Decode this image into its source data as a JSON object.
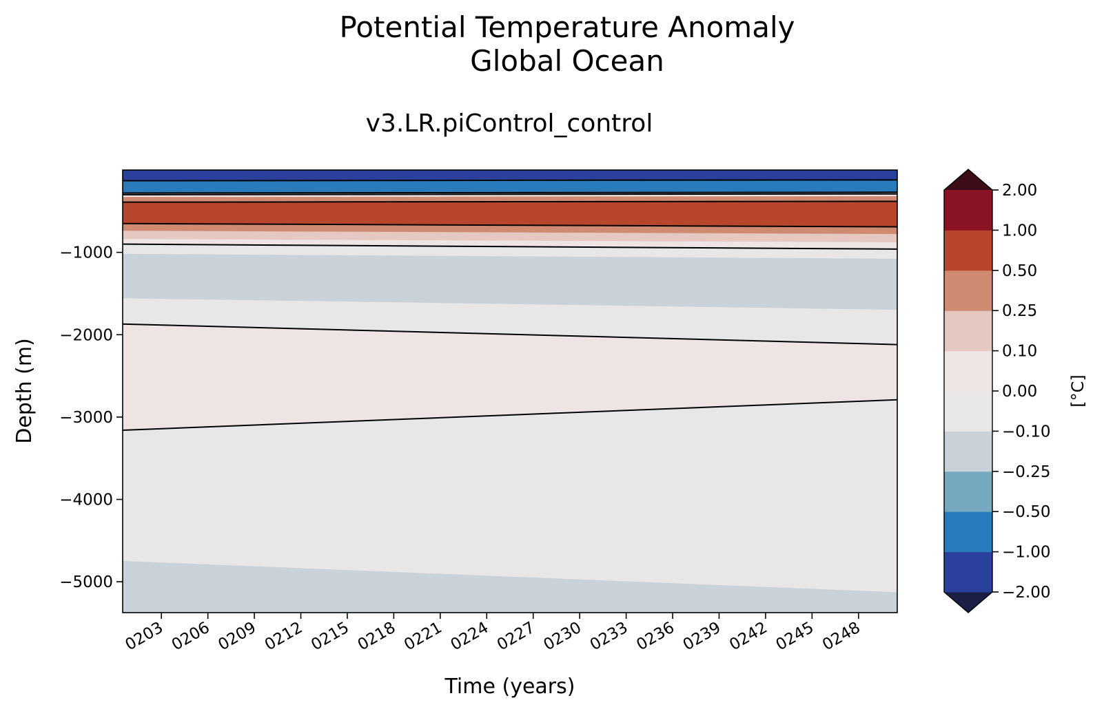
{
  "chart_data": {
    "type": "heatmap",
    "title": "Potential Temperature Anomaly",
    "subtitle": "Global Ocean",
    "run_label": "v3.LR.piControl_control",
    "xlabel": "Time (years)",
    "ylabel": "Depth (m)",
    "xlim": [
      200.5,
      250.5
    ],
    "ylim": [
      -5375,
      0
    ],
    "x_ticks": [
      {
        "value": 203,
        "label": "0203"
      },
      {
        "value": 206,
        "label": "0206"
      },
      {
        "value": 209,
        "label": "0209"
      },
      {
        "value": 212,
        "label": "0212"
      },
      {
        "value": 215,
        "label": "0215"
      },
      {
        "value": 218,
        "label": "0218"
      },
      {
        "value": 221,
        "label": "0221"
      },
      {
        "value": 224,
        "label": "0224"
      },
      {
        "value": 227,
        "label": "0227"
      },
      {
        "value": 230,
        "label": "0230"
      },
      {
        "value": 233,
        "label": "0233"
      },
      {
        "value": 236,
        "label": "0236"
      },
      {
        "value": 239,
        "label": "0239"
      },
      {
        "value": 242,
        "label": "0242"
      },
      {
        "value": 245,
        "label": "0245"
      },
      {
        "value": 248,
        "label": "0248"
      }
    ],
    "y_ticks": [
      {
        "value": -1000,
        "label": "−1000"
      },
      {
        "value": -2000,
        "label": "−2000"
      },
      {
        "value": -3000,
        "label": "−3000"
      },
      {
        "value": -4000,
        "label": "−4000"
      },
      {
        "value": -5000,
        "label": "−5000"
      }
    ],
    "colorbar": {
      "label": "[°C]",
      "levels": [
        -2.0,
        -1.0,
        -0.5,
        -0.25,
        -0.1,
        0.0,
        0.1,
        0.25,
        0.5,
        1.0,
        2.0
      ],
      "tick_labels": [
        "−2.00",
        "−1.00",
        "−0.50",
        "−0.25",
        "−0.10",
        "0.00",
        "0.10",
        "0.25",
        "0.50",
        "1.00",
        "2.00"
      ],
      "colors": [
        "#2b3f9c",
        "#2a7bbb",
        "#74a9c0",
        "#c9d2d9",
        "#e9e6e7",
        "#ede4e3",
        "#e5c8c1",
        "#cf8b72",
        "#b8462c",
        "#8a1426"
      ],
      "under_color": "#1b1f45",
      "over_color": "#3c0d17",
      "extend": "both"
    },
    "bands": [
      {
        "value_range": [
          -2.0,
          -1.0
        ],
        "color": "#2b3f9c",
        "top": [
          0,
          0
        ],
        "bottom": [
          -130,
          -120
        ]
      },
      {
        "value_range": [
          -1.0,
          -0.5
        ],
        "color": "#2a7bbb",
        "top": [
          -130,
          -120
        ],
        "bottom": [
          -280,
          -270
        ]
      },
      {
        "value_range": [
          -0.25,
          -0.1
        ],
        "color": "#c9d2d9",
        "top": [
          -280,
          -270
        ],
        "bottom": [
          -300,
          -290
        ]
      },
      {
        "value_range": [
          0.0,
          0.1
        ],
        "color": "#ede4e3",
        "top": [
          -300,
          -290
        ],
        "bottom": [
          -330,
          -320
        ]
      },
      {
        "value_range": [
          0.25,
          0.5
        ],
        "color": "#cf8b72",
        "top": [
          -330,
          -320
        ],
        "bottom": [
          -390,
          -380
        ]
      },
      {
        "value_range": [
          0.5,
          1.0
        ],
        "color": "#b8462c",
        "top": [
          -390,
          -380
        ],
        "bottom": [
          -650,
          -690
        ]
      },
      {
        "value_range": [
          0.25,
          0.5
        ],
        "color": "#cf8b72",
        "top": [
          -650,
          -690
        ],
        "bottom": [
          -740,
          -780
        ]
      },
      {
        "value_range": [
          0.1,
          0.25
        ],
        "color": "#e5c8c1",
        "top": [
          -740,
          -780
        ],
        "bottom": [
          -840,
          -880
        ]
      },
      {
        "value_range": [
          0.0,
          0.1
        ],
        "color": "#ede4e3",
        "top": [
          -840,
          -880
        ],
        "bottom": [
          -900,
          -960
        ]
      },
      {
        "value_range": [
          -0.1,
          0.0
        ],
        "color": "#e9e6e7",
        "top": [
          -900,
          -960
        ],
        "bottom": [
          -1020,
          -1080
        ]
      },
      {
        "value_range": [
          -0.25,
          -0.1
        ],
        "color": "#c9d2d9",
        "top": [
          -1020,
          -1080
        ],
        "bottom": [
          -1560,
          -1700
        ]
      },
      {
        "value_range": [
          -0.1,
          0.0
        ],
        "color": "#e9e6e7",
        "top": [
          -1560,
          -1700
        ],
        "bottom": [
          -1870,
          -2120
        ]
      },
      {
        "value_range": [
          0.0,
          0.1
        ],
        "color": "#ede4e3",
        "top": [
          -1870,
          -2120
        ],
        "bottom": [
          -3160,
          -2790
        ]
      },
      {
        "value_range": [
          -0.1,
          0.0
        ],
        "color": "#e9e6e7",
        "top": [
          -3160,
          -2790
        ],
        "bottom": [
          -4750,
          -5130
        ]
      },
      {
        "value_range": [
          -0.25,
          -0.1
        ],
        "color": "#c9d2d9",
        "top": [
          -4750,
          -5130
        ],
        "bottom": [
          -5375,
          -5375
        ]
      }
    ],
    "contours": [
      {
        "level": -1.0,
        "depths": [
          -130,
          -120
        ]
      },
      {
        "level": -0.5,
        "depths": [
          -280,
          -270
        ]
      },
      {
        "level": 0.0,
        "depths": [
          -300,
          -290
        ]
      },
      {
        "level": 0.5,
        "depths": [
          -390,
          -380
        ]
      },
      {
        "level": 0.5,
        "depths": [
          -650,
          -690
        ]
      },
      {
        "level": 0.0,
        "depths": [
          -900,
          -960
        ]
      },
      {
        "level": 0.0,
        "depths": [
          -1870,
          -2120
        ]
      },
      {
        "level": 0.0,
        "depths": [
          -3160,
          -2790
        ]
      }
    ]
  }
}
